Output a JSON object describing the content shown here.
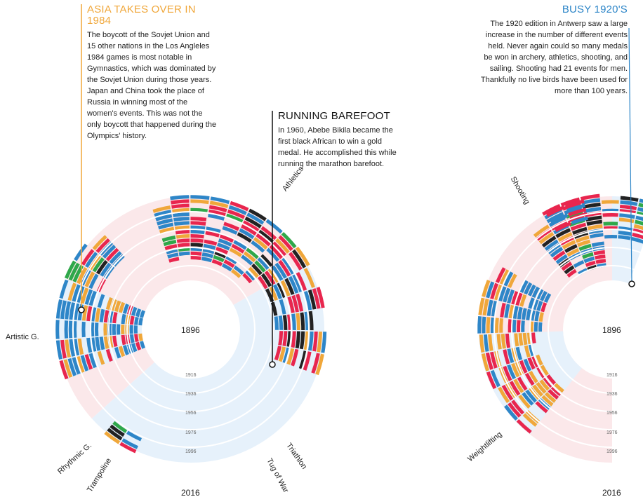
{
  "annotations": {
    "asia": {
      "title": "ASIA TAKES OVER IN 1984",
      "text": "The boycott of the Sovjet Union and 15 other nations in the Los Angleles 1984 games is most notable in Gymnastics, which was dominated by the Sovjet Union during those years. Japan and China took the place of Russia in winning most of the women's events. This was not the only boycott that happened during the Olympics' history."
    },
    "running": {
      "title": "RUNNING BAREFOOT",
      "text": "In 1960, Abebe Bikila became the first black African to win a gold medal. He accomplished this while running the marathon barefoot."
    },
    "busy": {
      "title": "BUSY 1920'S",
      "text": "The 1920 edition in Antwerp saw a large increase in the number of different events held. Never again could so many medals be won in archery, athletics, shooting, and sailing. Shooting had 21 events for men. Thankfully no live birds have been used for more than 100 years."
    }
  },
  "colors": {
    "europe": "#2e86c8",
    "americas": "#e8264e",
    "asia": "#f0a73a",
    "africa": "#222222",
    "oceania": "#2fa84a",
    "bg_pink": "#fbe8ea",
    "bg_blue": "#e6f1fb"
  },
  "chart_data": [
    {
      "type": "radial",
      "center_year": "1896",
      "outer_year": "2016",
      "year_ticks": [
        "1916",
        "1936",
        "1956",
        "1976",
        "1996"
      ],
      "sports": [
        "Athletics",
        "Artistic G.",
        "Rhythmic G.",
        "Trampoline",
        "Tug of War",
        "Triathlon"
      ]
    },
    {
      "type": "radial",
      "center_year": "1896",
      "outer_year": "2016",
      "year_ticks": [
        "1916",
        "1936",
        "1956",
        "1976",
        "1996"
      ],
      "sports": [
        "Shooting",
        "Weightlifting"
      ]
    }
  ]
}
